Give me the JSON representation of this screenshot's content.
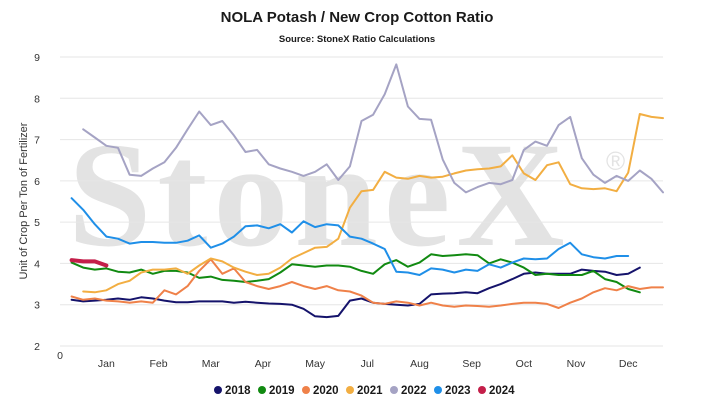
{
  "watermark": {
    "text": "StoneX",
    "mark": "®"
  },
  "chart_data": {
    "type": "line",
    "title": "NOLA Potash / New Crop Cotton Ratio",
    "subtitle": "Source: StoneX Ratio Calculations",
    "ylabel": "Unit of Crop Per Ton of Fertilizer",
    "xlabel": "",
    "ylim": [
      2,
      9
    ],
    "yticks": [
      2,
      3,
      4,
      5,
      6,
      7,
      8,
      9
    ],
    "xlim": [
      0,
      52
    ],
    "x_origin_label": "0",
    "months": [
      {
        "label": "Jan",
        "pos": 4
      },
      {
        "label": "Feb",
        "pos": 8.5
      },
      {
        "label": "Mar",
        "pos": 13
      },
      {
        "label": "Apr",
        "pos": 17.5
      },
      {
        "label": "May",
        "pos": 22
      },
      {
        "label": "Jul",
        "pos": 26.5
      },
      {
        "label": "Aug",
        "pos": 31
      },
      {
        "label": "Sep",
        "pos": 35.5
      },
      {
        "label": "Oct",
        "pos": 40
      },
      {
        "label": "Nov",
        "pos": 44.5
      },
      {
        "label": "Dec",
        "pos": 49
      }
    ],
    "grid": "horizontal",
    "legend": "bottom",
    "series": [
      {
        "name": "2018",
        "color": "#15136b",
        "width": 2,
        "x_start": 1,
        "values": [
          3.12,
          3.08,
          3.1,
          3.12,
          3.15,
          3.12,
          3.18,
          3.15,
          3.1,
          3.06,
          3.06,
          3.08,
          3.08,
          3.08,
          3.05,
          3.07,
          3.05,
          3.03,
          3.02,
          3.0,
          2.9,
          2.72,
          2.7,
          2.73,
          3.1,
          3.15,
          3.05,
          3.02,
          3.0,
          2.98,
          3.02,
          3.25,
          3.27,
          3.28,
          3.3,
          3.28,
          3.4,
          3.5,
          3.62,
          3.75,
          3.78,
          3.75,
          3.75,
          3.75,
          3.85,
          3.82,
          3.8,
          3.72,
          3.75,
          3.9
        ]
      },
      {
        "name": "2019",
        "color": "#118a11",
        "width": 2,
        "x_start": 1,
        "values": [
          4.02,
          3.9,
          3.85,
          3.88,
          3.8,
          3.78,
          3.85,
          3.75,
          3.82,
          3.82,
          3.78,
          3.65,
          3.68,
          3.6,
          3.58,
          3.55,
          3.58,
          3.62,
          3.78,
          3.98,
          3.95,
          3.92,
          3.95,
          3.95,
          3.92,
          3.82,
          3.75,
          3.98,
          4.08,
          3.92,
          4.02,
          4.22,
          4.18,
          4.2,
          4.22,
          4.2,
          4.0,
          4.1,
          4.02,
          3.9,
          3.72,
          3.75,
          3.72,
          3.72,
          3.72,
          3.82,
          3.62,
          3.55,
          3.38,
          3.3
        ]
      },
      {
        "name": "2020",
        "color": "#ef8149",
        "width": 2,
        "x_start": 1,
        "values": [
          3.2,
          3.12,
          3.15,
          3.1,
          3.08,
          3.05,
          3.08,
          3.05,
          3.35,
          3.25,
          3.45,
          3.82,
          4.1,
          3.75,
          3.88,
          3.55,
          3.45,
          3.38,
          3.45,
          3.55,
          3.45,
          3.38,
          3.45,
          3.35,
          3.32,
          3.22,
          3.05,
          3.02,
          3.08,
          3.05,
          2.98,
          3.05,
          2.98,
          2.95,
          2.98,
          2.97,
          2.95,
          2.98,
          3.02,
          3.05,
          3.05,
          3.02,
          2.92,
          3.05,
          3.15,
          3.3,
          3.4,
          3.35,
          3.45,
          3.38,
          3.42,
          3.42
        ]
      },
      {
        "name": "2021",
        "color": "#f2ae42",
        "width": 2,
        "x_start": 2,
        "values": [
          3.32,
          3.3,
          3.35,
          3.5,
          3.58,
          3.78,
          3.85,
          3.85,
          3.88,
          3.75,
          3.95,
          4.12,
          4.05,
          3.9,
          3.8,
          3.72,
          3.75,
          3.9,
          4.12,
          4.25,
          4.38,
          4.4,
          4.6,
          5.35,
          5.75,
          5.78,
          6.22,
          6.08,
          6.05,
          6.12,
          6.08,
          6.1,
          6.18,
          6.25,
          6.28,
          6.3,
          6.35,
          6.62,
          6.18,
          6.02,
          6.38,
          6.45,
          5.92,
          5.82,
          5.8,
          5.82,
          5.75,
          6.2,
          7.62,
          7.55,
          7.52
        ]
      },
      {
        "name": "2022",
        "color": "#a5a3c4",
        "width": 2,
        "x_start": 2,
        "values": [
          7.25,
          7.05,
          6.85,
          6.8,
          6.15,
          6.12,
          6.3,
          6.45,
          6.8,
          7.25,
          7.68,
          7.35,
          7.45,
          7.1,
          6.7,
          6.75,
          6.4,
          6.3,
          6.22,
          6.12,
          6.22,
          6.4,
          6.02,
          6.35,
          7.45,
          7.6,
          8.1,
          8.82,
          7.8,
          7.5,
          7.48,
          6.52,
          5.95,
          5.72,
          5.85,
          5.95,
          5.92,
          6.02,
          6.75,
          6.95,
          6.85,
          7.35,
          7.55,
          6.55,
          6.15,
          5.95,
          6.12,
          6.0,
          6.25,
          6.05,
          5.72
        ]
      },
      {
        "name": "2023",
        "color": "#1f8fe8",
        "width": 2,
        "x_start": 1,
        "values": [
          5.58,
          5.3,
          4.95,
          4.65,
          4.6,
          4.48,
          4.52,
          4.52,
          4.5,
          4.5,
          4.55,
          4.68,
          4.38,
          4.48,
          4.65,
          4.9,
          4.92,
          4.85,
          4.95,
          4.75,
          5.02,
          4.88,
          4.95,
          4.92,
          4.65,
          4.6,
          4.48,
          4.35,
          3.8,
          3.78,
          3.72,
          3.88,
          3.85,
          3.78,
          3.85,
          3.82,
          3.98,
          3.9,
          4.02,
          4.12,
          4.1,
          4.12,
          4.35,
          4.5,
          4.22,
          4.15,
          4.12,
          4.18,
          4.18
        ]
      },
      {
        "name": "2024",
        "color": "#c41f4a",
        "width": 4,
        "x_start": 1,
        "values": [
          4.08,
          4.05,
          4.05,
          3.95
        ]
      }
    ]
  }
}
